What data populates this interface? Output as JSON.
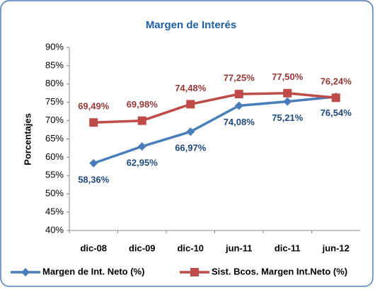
{
  "chart_data": {
    "type": "line",
    "title": "Margen de Interés",
    "y_label": "Porcentajes",
    "categories": [
      "dic-08",
      "dic-09",
      "dic-10",
      "jun-11",
      "dic-11",
      "jun-12"
    ],
    "series": [
      {
        "name": "Margen de Int. Neto (%)",
        "color": "#4a7ebb",
        "label_color": "#1f497d",
        "marker": "diamond",
        "values": [
          58.36,
          62.95,
          66.97,
          74.08,
          75.21,
          76.54
        ],
        "value_labels": [
          "58,36%",
          "62,95%",
          "66,97%",
          "74,08%",
          "75,21%",
          "76,54%"
        ]
      },
      {
        "name": "Sist. Bcos. Margen Int.Neto (%)",
        "color": "#be4b48",
        "label_color": "#953735",
        "marker": "square",
        "values": [
          69.49,
          69.98,
          74.48,
          77.25,
          77.5,
          76.24
        ],
        "value_labels": [
          "69,49%",
          "69,98%",
          "74,48%",
          "77,25%",
          "77,50%",
          "76,24%"
        ]
      }
    ],
    "ylim": [
      40,
      90
    ],
    "yticks": [
      {
        "value": 40,
        "label": "40%"
      },
      {
        "value": 45,
        "label": "45%"
      },
      {
        "value": 50,
        "label": "50%"
      },
      {
        "value": 55,
        "label": "55%"
      },
      {
        "value": 60,
        "label": "60%"
      },
      {
        "value": 65,
        "label": "65%"
      },
      {
        "value": 70,
        "label": "70%"
      },
      {
        "value": 75,
        "label": "75%"
      },
      {
        "value": 80,
        "label": "80%"
      },
      {
        "value": 85,
        "label": "85%"
      },
      {
        "value": 90,
        "label": "90%"
      }
    ],
    "grid": false,
    "legend": "bottom"
  }
}
